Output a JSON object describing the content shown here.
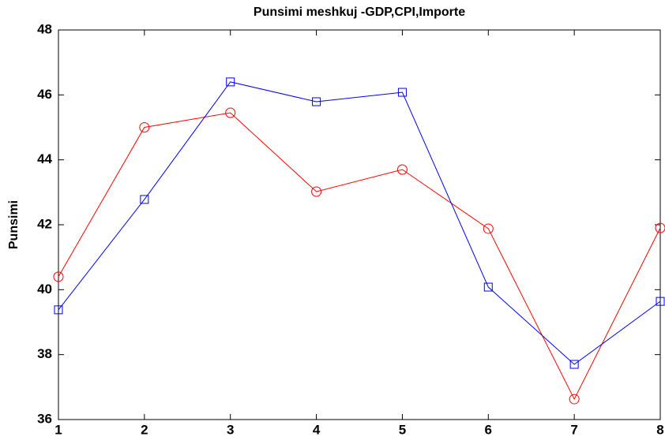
{
  "chart_data": {
    "type": "line",
    "title": "Punsimi meshkuj -GDP,CPI,Importe",
    "ylabel": "Punsimi",
    "x": [
      1,
      2,
      3,
      4,
      5,
      6,
      7,
      8
    ],
    "series": [
      {
        "color": "#ff0000",
        "marker": "circle",
        "values": [
          40.4,
          45.0,
          45.45,
          43.02,
          43.7,
          41.88,
          36.63,
          41.9
        ]
      },
      {
        "color": "#0000ff",
        "marker": "square",
        "values": [
          39.38,
          42.78,
          46.4,
          45.79,
          46.08,
          40.08,
          37.7,
          39.64
        ]
      }
    ],
    "xlim": [
      1,
      8
    ],
    "xticks": [
      1,
      2,
      3,
      4,
      5,
      6,
      7,
      8
    ],
    "ylim": [
      36,
      48
    ],
    "yticks": [
      36,
      38,
      40,
      42,
      44,
      46,
      48
    ]
  }
}
